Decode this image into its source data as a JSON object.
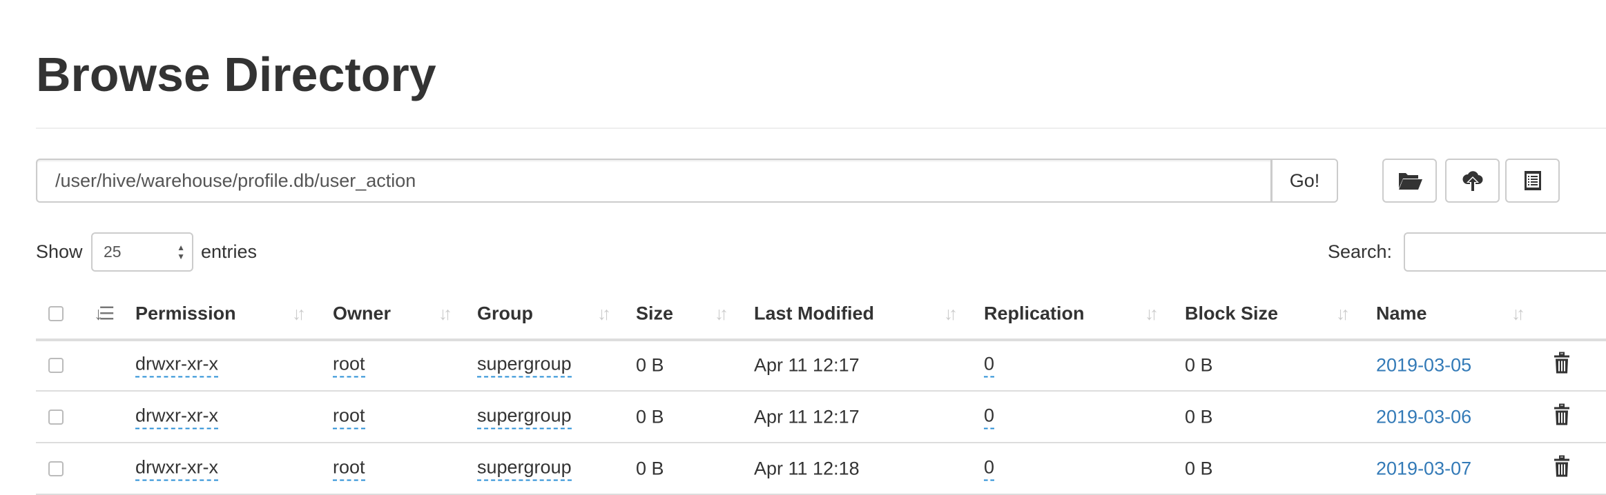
{
  "title": "Browse Directory",
  "path_input": {
    "value": "/user/hive/warehouse/profile.db/user_action"
  },
  "go_label": "Go!",
  "toolbar": {
    "icons": [
      "folder-open-icon",
      "cloud-upload-icon",
      "list-alt-icon"
    ]
  },
  "length": {
    "show_label": "Show",
    "selected": "25",
    "entries_label": "entries"
  },
  "search": {
    "label": "Search:",
    "value": ""
  },
  "columns": [
    "Permission",
    "Owner",
    "Group",
    "Size",
    "Last Modified",
    "Replication",
    "Block Size",
    "Name"
  ],
  "rows": [
    {
      "permission": "drwxr-xr-x",
      "owner": "root",
      "group": "supergroup",
      "size": "0 B",
      "modified": "Apr 11 12:17",
      "replication": "0",
      "block_size": "0 B",
      "name": "2019-03-05"
    },
    {
      "permission": "drwxr-xr-x",
      "owner": "root",
      "group": "supergroup",
      "size": "0 B",
      "modified": "Apr 11 12:17",
      "replication": "0",
      "block_size": "0 B",
      "name": "2019-03-06"
    },
    {
      "permission": "drwxr-xr-x",
      "owner": "root",
      "group": "supergroup",
      "size": "0 B",
      "modified": "Apr 11 12:18",
      "replication": "0",
      "block_size": "0 B",
      "name": "2019-03-07"
    }
  ],
  "colors": {
    "link": "#337ab7",
    "text": "#333333",
    "border": "#cccccc"
  }
}
